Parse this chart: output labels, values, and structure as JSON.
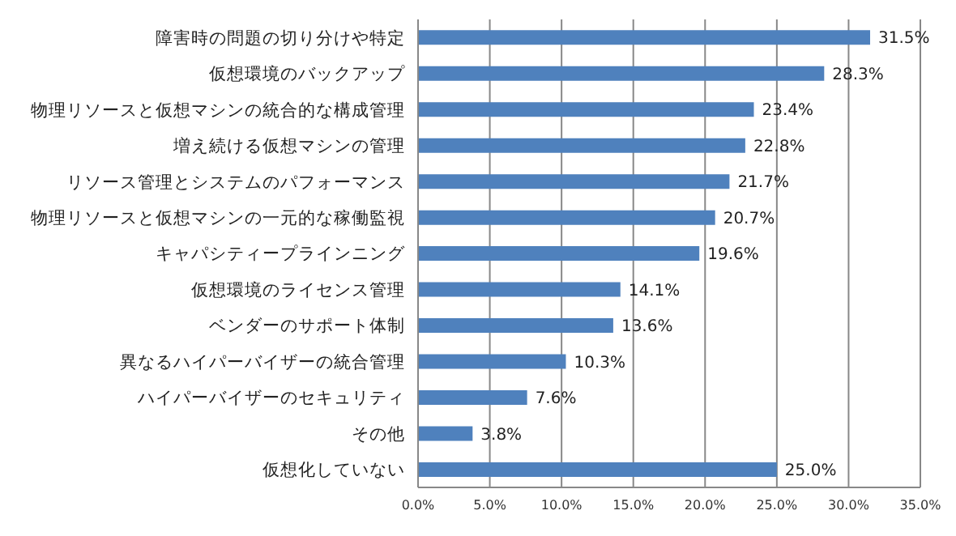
{
  "chart_data": {
    "type": "bar",
    "orientation": "horizontal",
    "categories": [
      "障害時の問題の切り分けや特定",
      "仮想環境のバックアップ",
      "物理リソースと仮想マシンの統合的な構成管理",
      "増え続ける仮想マシンの管理",
      "リソース管理とシステムのパフォーマンス",
      "物理リソースと仮想マシンの一元的な稼働監視",
      "キャパシティープラインニング",
      "仮想環境のライセンス管理",
      "ベンダーのサポート体制",
      "異なるハイパーバイザーの統合管理",
      "ハイパーバイザーのセキュリティ",
      "その他",
      "仮想化していない"
    ],
    "values": [
      31.5,
      28.3,
      23.4,
      22.8,
      21.7,
      20.7,
      19.6,
      14.1,
      13.6,
      10.3,
      7.6,
      3.8,
      25.0
    ],
    "value_labels": [
      "31.5%",
      "28.3%",
      "23.4%",
      "22.8%",
      "21.7%",
      "20.7%",
      "19.6%",
      "14.1%",
      "13.6%",
      "10.3%",
      "7.6%",
      "3.8%",
      "25.0%"
    ],
    "color": "#4f81bd",
    "xlim": [
      0,
      35
    ],
    "xticks": [
      {
        "value": 0,
        "label": "0.0%"
      },
      {
        "value": 5,
        "label": "5.0%"
      },
      {
        "value": 10,
        "label": "10.0%"
      },
      {
        "value": 15,
        "label": "15.0%"
      },
      {
        "value": 20,
        "label": "20.0%"
      },
      {
        "value": 25,
        "label": "25.0%"
      },
      {
        "value": 30,
        "label": "30.0%"
      },
      {
        "value": 35,
        "label": "35.0%"
      }
    ],
    "grid": "x",
    "legend": false
  }
}
